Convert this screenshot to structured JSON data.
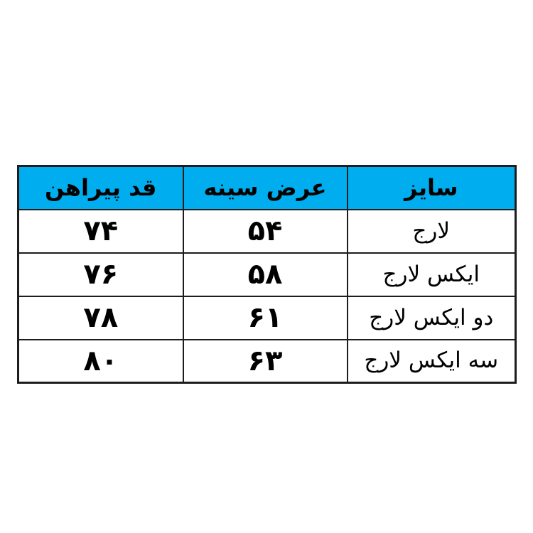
{
  "page": {
    "background_color": "#ffffff"
  },
  "chart_data": {
    "type": "table",
    "direction": "rtl",
    "header_bg_color": "#00AEEF",
    "border_color": "#1c1c1c",
    "columns": [
      "سایز",
      "عرض سینه",
      "قد پیراهن"
    ],
    "rows": [
      [
        "لارج",
        "۵۴",
        "۷۴"
      ],
      [
        "ایکس لارج",
        "۵۸",
        "۷۶"
      ],
      [
        "دو ایکس لارج",
        "۶۱",
        "۷۸"
      ],
      [
        "سه ایکس لارج",
        "۶۳",
        "۸۰"
      ]
    ],
    "numeric_values": {
      "chest_width": [
        54,
        58,
        61,
        63
      ],
      "shirt_length": [
        74,
        76,
        78,
        80
      ]
    }
  }
}
